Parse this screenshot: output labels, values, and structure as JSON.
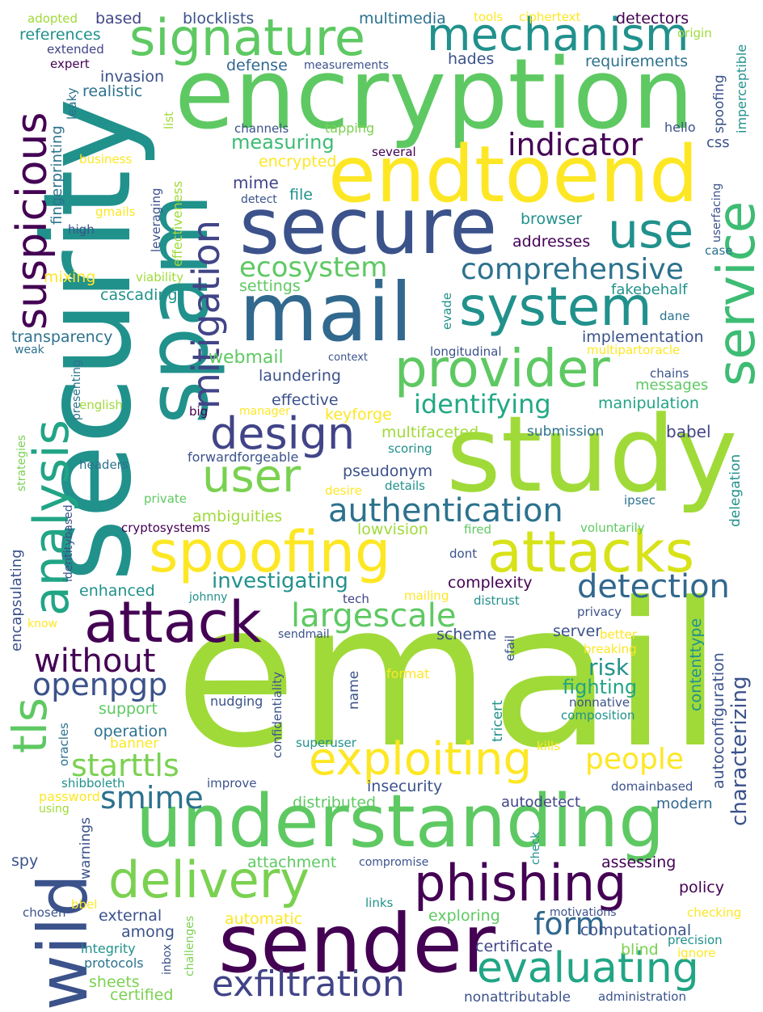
{
  "palette": {
    "background": "#ffffff",
    "colors": [
      "#440154",
      "#3b528b",
      "#21918c",
      "#5ec962",
      "#a0da39",
      "#fde725"
    ]
  },
  "words": [
    {
      "text": "email",
      "color": "#a0da39"
    },
    {
      "text": "security",
      "color": "#21918c"
    },
    {
      "text": "encryption",
      "color": "#5ec962"
    },
    {
      "text": "study",
      "color": "#a0da39"
    },
    {
      "text": "spam",
      "color": "#21918c"
    },
    {
      "text": "understanding",
      "color": "#5ec962"
    },
    {
      "text": "secure",
      "color": "#3b528b"
    },
    {
      "text": "endtoend",
      "color": "#fde725"
    },
    {
      "text": "mail",
      "color": "#31688e"
    },
    {
      "text": "sender",
      "color": "#440154"
    },
    {
      "text": "spoofing",
      "color": "#fde725"
    },
    {
      "text": "attacks",
      "color": "#d8e219"
    },
    {
      "text": "wild",
      "color": "#3b528b"
    },
    {
      "text": "signature",
      "color": "#5ec962"
    },
    {
      "text": "mechanism",
      "color": "#21918c"
    },
    {
      "text": "attack",
      "color": "#440154"
    },
    {
      "text": "system",
      "color": "#21918c"
    },
    {
      "text": "provider",
      "color": "#5ec962"
    },
    {
      "text": "service",
      "color": "#3dbc74"
    },
    {
      "text": "analysis",
      "color": "#21a585"
    },
    {
      "text": "suspicious",
      "color": "#440154"
    },
    {
      "text": "exploiting",
      "color": "#fde725"
    },
    {
      "text": "delivery",
      "color": "#7ad151"
    },
    {
      "text": "phishing",
      "color": "#440154"
    },
    {
      "text": "evaluating",
      "color": "#21a585"
    },
    {
      "text": "exfiltration",
      "color": "#414487"
    },
    {
      "text": "design",
      "color": "#414487"
    },
    {
      "text": "user",
      "color": "#7ad151"
    },
    {
      "text": "use",
      "color": "#21918c"
    },
    {
      "text": "mitigation",
      "color": "#414487"
    },
    {
      "text": "authentication",
      "color": "#2c728e"
    },
    {
      "text": "detection",
      "color": "#31688e"
    },
    {
      "text": "indicator",
      "color": "#440154"
    },
    {
      "text": "comprehensive",
      "color": "#2c728e"
    },
    {
      "text": "ecosystem",
      "color": "#5ec962"
    },
    {
      "text": "identifying",
      "color": "#22a884"
    },
    {
      "text": "largescale",
      "color": "#5ec962"
    },
    {
      "text": "without",
      "color": "#440154"
    },
    {
      "text": "openpgp",
      "color": "#3b528b"
    },
    {
      "text": "tls",
      "color": "#5ec962"
    },
    {
      "text": "starttls",
      "color": "#7ad151"
    },
    {
      "text": "smime",
      "color": "#2c728e"
    },
    {
      "text": "people",
      "color": "#fde725"
    },
    {
      "text": "form",
      "color": "#31688e"
    },
    {
      "text": "characterizing",
      "color": "#3b528b"
    },
    {
      "text": "investigating",
      "color": "#21918c"
    },
    {
      "text": "risk",
      "color": "#21918c"
    },
    {
      "text": "fighting",
      "color": "#21a585"
    },
    {
      "text": "webmail",
      "color": "#5ec962"
    },
    {
      "text": "measuring",
      "color": "#3dbc74"
    },
    {
      "text": "encrypted",
      "color": "#fde725"
    },
    {
      "text": "mime",
      "color": "#414487"
    },
    {
      "text": "file",
      "color": "#21918c"
    },
    {
      "text": "browser",
      "color": "#21918c"
    },
    {
      "text": "addresses",
      "color": "#440154"
    },
    {
      "text": "settings",
      "color": "#5ec962"
    },
    {
      "text": "cascading",
      "color": "#21918c"
    },
    {
      "text": "fakebehalf",
      "color": "#21918c"
    },
    {
      "text": "implementation",
      "color": "#3b528b"
    },
    {
      "text": "transparency",
      "color": "#2c728e"
    },
    {
      "text": "laundering",
      "color": "#3b528b"
    },
    {
      "text": "effective",
      "color": "#3b528b"
    },
    {
      "text": "keyforge",
      "color": "#fde725"
    },
    {
      "text": "multifaceted",
      "color": "#a0da39"
    },
    {
      "text": "submission",
      "color": "#2c728e"
    },
    {
      "text": "babel",
      "color": "#414487"
    },
    {
      "text": "messages",
      "color": "#5ec962"
    },
    {
      "text": "manipulation",
      "color": "#21a585"
    },
    {
      "text": "chains",
      "color": "#3b528b"
    },
    {
      "text": "pseudonym",
      "color": "#3b528b"
    },
    {
      "text": "ambiguities",
      "color": "#a0da39"
    },
    {
      "text": "lowvision",
      "color": "#a0da39"
    },
    {
      "text": "complexity",
      "color": "#440154"
    },
    {
      "text": "delegation",
      "color": "#21918c"
    },
    {
      "text": "contenttype",
      "color": "#21918c"
    },
    {
      "text": "autoconfiguration",
      "color": "#3b528b"
    },
    {
      "text": "enhanced",
      "color": "#21918c"
    },
    {
      "text": "scheme",
      "color": "#3b528b"
    },
    {
      "text": "server",
      "color": "#3b528b"
    },
    {
      "text": "support",
      "color": "#5ec962"
    },
    {
      "text": "operation",
      "color": "#2c728e"
    },
    {
      "text": "insecurity",
      "color": "#3b528b"
    },
    {
      "text": "distributed",
      "color": "#5ec962"
    },
    {
      "text": "autodetect",
      "color": "#414487"
    },
    {
      "text": "modern",
      "color": "#31688e"
    },
    {
      "text": "attachment",
      "color": "#5ec962"
    },
    {
      "text": "assessing",
      "color": "#440154"
    },
    {
      "text": "policy",
      "color": "#440154"
    },
    {
      "text": "external",
      "color": "#3b528b"
    },
    {
      "text": "among",
      "color": "#3b528b"
    },
    {
      "text": "automatic",
      "color": "#fde725"
    },
    {
      "text": "exploring",
      "color": "#5ec962"
    },
    {
      "text": "computational",
      "color": "#3b528b"
    },
    {
      "text": "certificate",
      "color": "#414487"
    },
    {
      "text": "blind",
      "color": "#7ad151"
    },
    {
      "text": "integrity",
      "color": "#21918c"
    },
    {
      "text": "protocols",
      "color": "#2c728e"
    },
    {
      "text": "sheets",
      "color": "#7ad151"
    },
    {
      "text": "certified",
      "color": "#7ad151"
    },
    {
      "text": "nonattributable",
      "color": "#3b528b"
    },
    {
      "text": "administration",
      "color": "#3b528b"
    },
    {
      "text": "blocklists",
      "color": "#3b528b"
    },
    {
      "text": "based",
      "color": "#414487"
    },
    {
      "text": "multimedia",
      "color": "#2c728e"
    },
    {
      "text": "detectors",
      "color": "#440154"
    },
    {
      "text": "references",
      "color": "#21918c"
    },
    {
      "text": "requirements",
      "color": "#2c728e"
    },
    {
      "text": "defense",
      "color": "#31688e"
    },
    {
      "text": "hades",
      "color": "#3b528b"
    },
    {
      "text": "invasion",
      "color": "#3b528b"
    },
    {
      "text": "realistic",
      "color": "#2c728e"
    },
    {
      "text": "adopted",
      "color": "#a0da39"
    },
    {
      "text": "extended",
      "color": "#414487"
    },
    {
      "text": "expert",
      "color": "#440154"
    },
    {
      "text": "measurements",
      "color": "#3b528b"
    },
    {
      "text": "tools",
      "color": "#fde725"
    },
    {
      "text": "ciphertext",
      "color": "#fde725"
    },
    {
      "text": "origin",
      "color": "#a0da39"
    },
    {
      "text": "imperceptible",
      "color": "#21918c"
    },
    {
      "text": "spoofing",
      "color": "#3b528b"
    },
    {
      "text": "hello",
      "color": "#3b528b"
    },
    {
      "text": "css",
      "color": "#3b528b"
    },
    {
      "text": "channels",
      "color": "#3b528b"
    },
    {
      "text": "tapping",
      "color": "#7ad151"
    },
    {
      "text": "several",
      "color": "#440154"
    },
    {
      "text": "business",
      "color": "#fde725"
    },
    {
      "text": "detect",
      "color": "#3b528b"
    },
    {
      "text": "fingerprinting",
      "color": "#2c728e"
    },
    {
      "text": "leaky",
      "color": "#2c728e"
    },
    {
      "text": "list",
      "color": "#a0da39"
    },
    {
      "text": "effectiveness",
      "color": "#a0da39"
    },
    {
      "text": "leveraging",
      "color": "#3b528b"
    },
    {
      "text": "gmails",
      "color": "#fde725"
    },
    {
      "text": "high",
      "color": "#3b528b"
    },
    {
      "text": "viability",
      "color": "#a0da39"
    },
    {
      "text": "mixing",
      "color": "#fde725"
    },
    {
      "text": "userfacing",
      "color": "#3b528b"
    },
    {
      "text": "case",
      "color": "#2c728e"
    },
    {
      "text": "evade",
      "color": "#21918c"
    },
    {
      "text": "dane",
      "color": "#2c728e"
    },
    {
      "text": "longitudinal",
      "color": "#3b528b"
    },
    {
      "text": "multipartoracle",
      "color": "#fde725"
    },
    {
      "text": "context",
      "color": "#3b528b"
    },
    {
      "text": "weak",
      "color": "#2c728e"
    },
    {
      "text": "presenting",
      "color": "#2c728e"
    },
    {
      "text": "english",
      "color": "#a0da39"
    },
    {
      "text": "manager",
      "color": "#fde725"
    },
    {
      "text": "big",
      "color": "#440154"
    },
    {
      "text": "scoring",
      "color": "#21918c"
    },
    {
      "text": "forwardforgeable",
      "color": "#3b528b"
    },
    {
      "text": "strategies",
      "color": "#7ad151"
    },
    {
      "text": "headers",
      "color": "#2c728e"
    },
    {
      "text": "identitybased",
      "color": "#3b528b"
    },
    {
      "text": "private",
      "color": "#5ec962"
    },
    {
      "text": "desire",
      "color": "#fde725"
    },
    {
      "text": "details",
      "color": "#21918c"
    },
    {
      "text": "ipsec",
      "color": "#2c728e"
    },
    {
      "text": "cryptosystems",
      "color": "#440154"
    },
    {
      "text": "fired",
      "color": "#5ec962"
    },
    {
      "text": "voluntarily",
      "color": "#5ec962"
    },
    {
      "text": "dont",
      "color": "#3b528b"
    },
    {
      "text": "encapsulating",
      "color": "#3b528b"
    },
    {
      "text": "johnny",
      "color": "#21918c"
    },
    {
      "text": "tech",
      "color": "#414487"
    },
    {
      "text": "mailing",
      "color": "#fde725"
    },
    {
      "text": "distrust",
      "color": "#21918c"
    },
    {
      "text": "privacy",
      "color": "#3b528b"
    },
    {
      "text": "know",
      "color": "#fde725"
    },
    {
      "text": "sendmail",
      "color": "#3b528b"
    },
    {
      "text": "better",
      "color": "#fde725"
    },
    {
      "text": "breaking",
      "color": "#fde725"
    },
    {
      "text": "efail",
      "color": "#3b528b"
    },
    {
      "text": "format",
      "color": "#fde725"
    },
    {
      "text": "name",
      "color": "#3b528b"
    },
    {
      "text": "confidentiality",
      "color": "#3b528b"
    },
    {
      "text": "nudging",
      "color": "#3b528b"
    },
    {
      "text": "tricert",
      "color": "#21918c"
    },
    {
      "text": "nonnative",
      "color": "#3b528b"
    },
    {
      "text": "composition",
      "color": "#21918c"
    },
    {
      "text": "banner",
      "color": "#fde725"
    },
    {
      "text": "oracles",
      "color": "#2c728e"
    },
    {
      "text": "superuser",
      "color": "#21918c"
    },
    {
      "text": "kills",
      "color": "#fde725"
    },
    {
      "text": "shibboleth",
      "color": "#21918c"
    },
    {
      "text": "improve",
      "color": "#3b528b"
    },
    {
      "text": "password",
      "color": "#fde725"
    },
    {
      "text": "using",
      "color": "#a0da39"
    },
    {
      "text": "domainbased",
      "color": "#3b528b"
    },
    {
      "text": "warnings",
      "color": "#3b528b"
    },
    {
      "text": "spy",
      "color": "#3b528b"
    },
    {
      "text": "compromise",
      "color": "#3b528b"
    },
    {
      "text": "check",
      "color": "#21918c"
    },
    {
      "text": "links",
      "color": "#21918c"
    },
    {
      "text": "chosen",
      "color": "#3b528b"
    },
    {
      "text": "bbel",
      "color": "#fde725"
    },
    {
      "text": "inbox",
      "color": "#3b528b"
    },
    {
      "text": "challenges",
      "color": "#7ad151"
    },
    {
      "text": "motivations",
      "color": "#3b528b"
    },
    {
      "text": "checking",
      "color": "#fde725"
    },
    {
      "text": "precision",
      "color": "#21918c"
    },
    {
      "text": "ignore",
      "color": "#fde725"
    }
  ]
}
